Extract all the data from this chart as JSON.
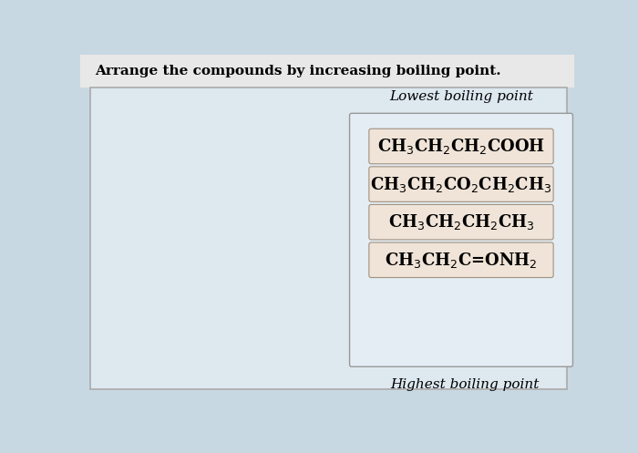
{
  "title": "Arrange the compounds by increasing boiling point.",
  "lowest_label": "Lowest boiling point",
  "highest_label": "Highest boiling point",
  "compounds": [
    "CH$_3$CH$_2$CH$_2$COOH",
    "CH$_3$CH$_2$CO$_2$CH$_2$CH$_3$",
    "CH$_3$CH$_2$CH$_2$CH$_3$",
    "CH$_3$CH$_2$C=ONH$_2$"
  ],
  "top_bg": "#e8e8e8",
  "main_bg": "#dde8ef",
  "box_bg": "#f0e4d8",
  "box_edge": "#a09080",
  "outer_box_edge": "#999999",
  "outer_box_bg": "#e4edf3",
  "title_fontsize": 11,
  "label_fontsize": 11,
  "compound_fontsize": 13,
  "fig_bg": "#c8d8e2",
  "title_bg": "#e0e0e0"
}
